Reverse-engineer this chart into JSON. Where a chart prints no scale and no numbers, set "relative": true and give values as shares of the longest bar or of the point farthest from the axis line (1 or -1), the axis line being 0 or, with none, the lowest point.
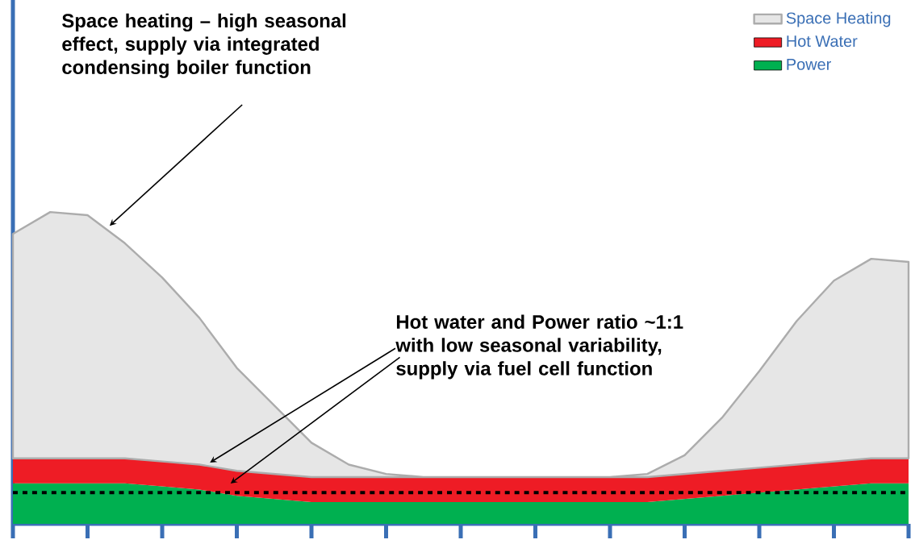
{
  "chart_data": {
    "type": "area",
    "stacked": true,
    "relative": true,
    "legend": "top right",
    "marker": "none",
    "line_style": "solid",
    "categories": [
      null,
      null,
      null,
      null,
      null,
      null,
      null,
      null,
      null,
      null,
      null,
      null,
      null,
      null,
      null,
      null,
      null,
      null,
      null,
      null,
      null,
      null,
      null,
      null,
      null
    ],
    "series": [
      {
        "name": "Power",
        "color": "#00b050",
        "values": [
          0.13,
          0.13,
          0.13,
          0.13,
          0.12,
          0.11,
          0.09,
          0.08,
          0.07,
          0.07,
          0.07,
          0.07,
          0.07,
          0.07,
          0.07,
          0.07,
          0.07,
          0.07,
          0.08,
          0.09,
          0.1,
          0.11,
          0.12,
          0.13,
          0.13
        ]
      },
      {
        "name": "Hot Water",
        "color": "#ee1c25",
        "values": [
          0.08,
          0.08,
          0.08,
          0.08,
          0.08,
          0.08,
          0.08,
          0.08,
          0.08,
          0.08,
          0.08,
          0.08,
          0.08,
          0.08,
          0.08,
          0.08,
          0.08,
          0.08,
          0.08,
          0.08,
          0.08,
          0.08,
          0.08,
          0.08,
          0.08
        ]
      },
      {
        "name": "Space Heating",
        "color": "#e6e6e6",
        "values": [
          0.72,
          0.79,
          0.78,
          0.69,
          0.59,
          0.47,
          0.33,
          0.22,
          0.11,
          0.04,
          0.01,
          0,
          0,
          0,
          0,
          0,
          0,
          0.01,
          0.06,
          0.17,
          0.31,
          0.46,
          0.58,
          0.64,
          0.63
        ]
      }
    ],
    "ref_lines": [
      {
        "axis": "y",
        "value": 0.1,
        "color": "#000000",
        "line_style": "dashed"
      }
    ],
    "annotations": [
      "Space heating – high seasonal effect, supply via integrated condensing boiler function",
      "Hot water and Power ratio ~1:1 with low seasonal variability, supply via fuel cell function"
    ]
  }
}
